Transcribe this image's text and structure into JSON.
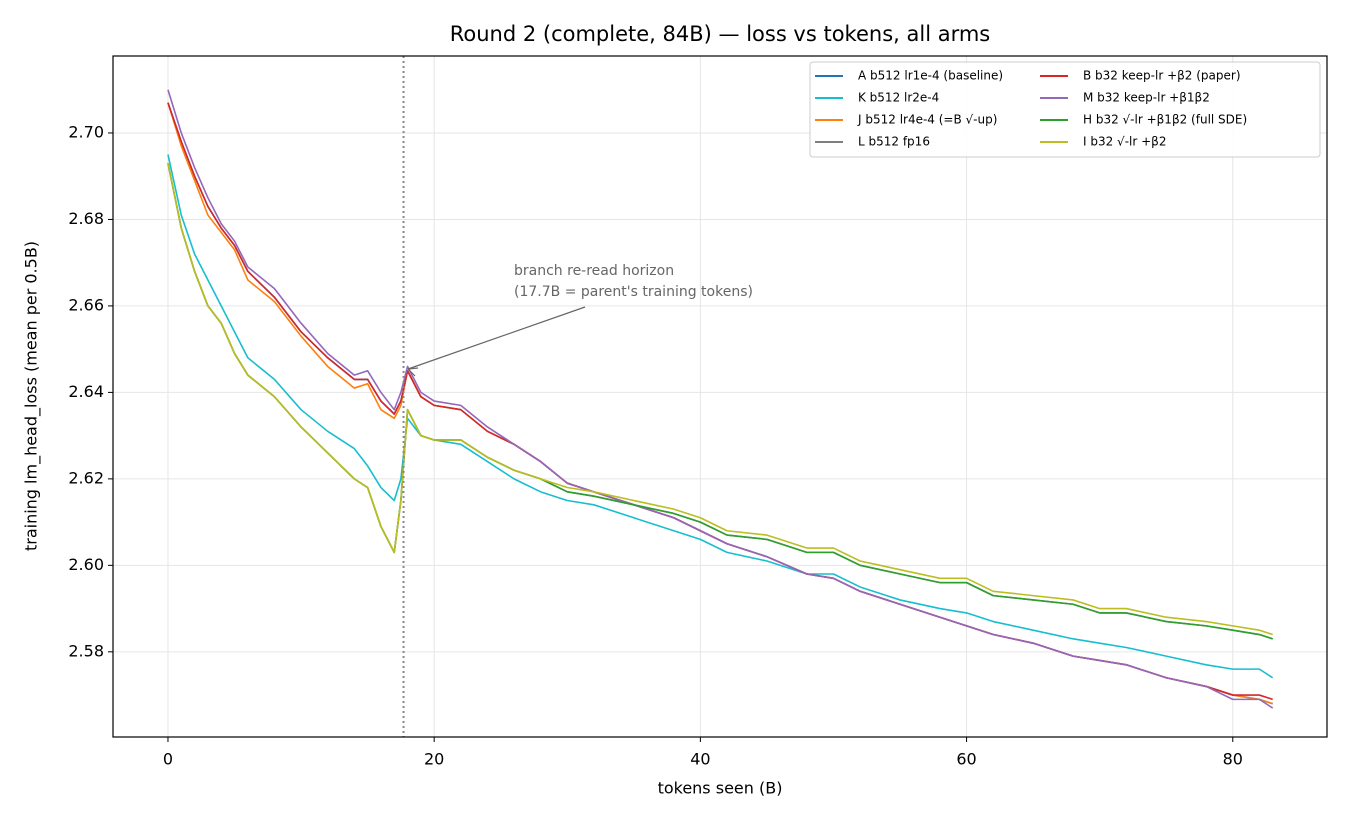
{
  "chart_data": {
    "type": "line",
    "title": "Round 2 (complete, 84B) — loss vs tokens, all arms",
    "x_label": "tokens seen (B)",
    "y_label": "training lm_head_loss (mean per 0.5B)",
    "annotation": [
      "branch re-read horizon",
      "(17.7B = parent's training tokens)"
    ],
    "vline": 17.7,
    "x": [
      0,
      1,
      2,
      3,
      4,
      5,
      6,
      8,
      10,
      12,
      14,
      15,
      16,
      17,
      17.5,
      18,
      19,
      20,
      22,
      24,
      26,
      28,
      30,
      32,
      35,
      38,
      40,
      42,
      45,
      48,
      50,
      52,
      55,
      58,
      60,
      62,
      65,
      68,
      70,
      72,
      75,
      78,
      80,
      82,
      83
    ],
    "xlim": [
      -4.13,
      87.08
    ],
    "xticks": [
      0,
      20,
      40,
      60,
      80
    ],
    "ylim": [
      2.5603,
      2.7178
    ],
    "yticks": [
      2.58,
      {
        "value": 2.6,
        "label": "2.60"
      },
      2.62,
      2.64,
      2.66,
      2.68,
      {
        "value": 2.7,
        "label": "2.70"
      }
    ],
    "grid": true,
    "legend": "upper right",
    "series": [
      {
        "name": "A  b512 lr1e-4 (baseline)",
        "color": "#1f77b4",
        "values": [
          2.707,
          2.698,
          2.69,
          2.683,
          2.678,
          2.674,
          2.668,
          2.662,
          2.654,
          2.648,
          2.643,
          2.643,
          2.638,
          2.635,
          2.638,
          2.645,
          2.639,
          2.637,
          2.636,
          2.631,
          2.628,
          2.624,
          2.619,
          2.617,
          2.614,
          2.611,
          2.608,
          2.605,
          2.602,
          2.598,
          2.597,
          2.594,
          2.591,
          2.588,
          2.586,
          2.584,
          2.582,
          2.579,
          2.578,
          2.577,
          2.574,
          2.572,
          2.57,
          2.569,
          2.568
        ]
      },
      {
        "name": "K  b512 lr2e-4",
        "color": "#17becf",
        "values": [
          2.695,
          2.681,
          2.672,
          2.666,
          2.66,
          2.654,
          2.648,
          2.643,
          2.636,
          2.631,
          2.627,
          2.623,
          2.618,
          2.615,
          2.62,
          2.634,
          2.63,
          2.629,
          2.628,
          2.624,
          2.62,
          2.617,
          2.615,
          2.614,
          2.611,
          2.608,
          2.606,
          2.603,
          2.601,
          2.598,
          2.598,
          2.595,
          2.592,
          2.59,
          2.589,
          2.587,
          2.585,
          2.583,
          2.582,
          2.581,
          2.579,
          2.577,
          2.576,
          2.576,
          2.574
        ]
      },
      {
        "name": "J  b512 lr4e-4 (=B √-up)",
        "color": "#ff7f0e",
        "values": [
          2.707,
          2.697,
          2.689,
          2.681,
          2.677,
          2.673,
          2.666,
          2.661,
          2.653,
          2.646,
          2.641,
          2.642,
          2.636,
          2.634,
          2.637,
          2.645,
          2.639,
          2.637,
          2.636,
          2.631,
          2.628,
          2.624,
          2.619,
          2.617,
          2.614,
          2.611,
          2.608,
          2.605,
          2.602,
          2.598,
          2.597,
          2.594,
          2.591,
          2.588,
          2.586,
          2.584,
          2.582,
          2.579,
          2.578,
          2.577,
          2.574,
          2.572,
          2.57,
          2.569,
          2.568
        ]
      },
      {
        "name": "L  b512 fp16",
        "color": "#7f7f7f",
        "values": [
          2.693,
          2.678,
          2.668,
          2.66,
          2.656,
          2.649,
          2.644,
          2.639,
          2.632,
          2.626,
          2.62,
          2.618,
          2.609,
          2.603,
          2.615,
          2.636,
          2.63,
          2.629,
          2.629,
          2.625,
          2.622,
          2.62,
          2.617,
          2.616,
          2.614,
          2.612,
          2.61,
          2.607,
          2.606,
          2.603,
          2.603,
          2.6,
          2.598,
          2.596,
          2.596,
          2.593,
          2.592,
          2.591,
          2.589,
          2.589,
          2.587,
          2.586,
          2.585,
          2.584,
          2.583
        ]
      },
      {
        "name": "B  b32 keep-lr +β2 (paper)",
        "color": "#d62728",
        "values": [
          2.707,
          2.698,
          2.69,
          2.683,
          2.678,
          2.674,
          2.668,
          2.662,
          2.654,
          2.648,
          2.643,
          2.643,
          2.638,
          2.635,
          2.638,
          2.645,
          2.639,
          2.637,
          2.636,
          2.631,
          2.628,
          2.624,
          2.619,
          2.617,
          2.614,
          2.611,
          2.608,
          2.605,
          2.602,
          2.598,
          2.597,
          2.594,
          2.591,
          2.588,
          2.586,
          2.584,
          2.582,
          2.579,
          2.578,
          2.577,
          2.574,
          2.572,
          2.57,
          2.57,
          2.569
        ]
      },
      {
        "name": "M  b32 keep-lr +β1β2",
        "color": "#9467bd",
        "values": [
          2.71,
          2.7,
          2.692,
          2.685,
          2.679,
          2.675,
          2.669,
          2.664,
          2.656,
          2.649,
          2.644,
          2.645,
          2.64,
          2.636,
          2.64,
          2.646,
          2.64,
          2.638,
          2.637,
          2.632,
          2.628,
          2.624,
          2.619,
          2.617,
          2.614,
          2.611,
          2.608,
          2.605,
          2.602,
          2.598,
          2.597,
          2.594,
          2.591,
          2.588,
          2.586,
          2.584,
          2.582,
          2.579,
          2.578,
          2.577,
          2.574,
          2.572,
          2.569,
          2.569,
          2.567
        ]
      },
      {
        "name": "H  b32 √-lr +β1β2 (full SDE)",
        "color": "#2ca02c",
        "values": [
          2.693,
          2.678,
          2.668,
          2.66,
          2.656,
          2.649,
          2.644,
          2.639,
          2.632,
          2.626,
          2.62,
          2.618,
          2.609,
          2.603,
          2.615,
          2.636,
          2.63,
          2.629,
          2.629,
          2.625,
          2.622,
          2.62,
          2.617,
          2.616,
          2.614,
          2.612,
          2.61,
          2.607,
          2.606,
          2.603,
          2.603,
          2.6,
          2.598,
          2.596,
          2.596,
          2.593,
          2.592,
          2.591,
          2.589,
          2.589,
          2.587,
          2.586,
          2.585,
          2.584,
          2.583
        ]
      },
      {
        "name": "I  b32 √-lr +β2",
        "color": "#bcbd22",
        "values": [
          2.693,
          2.678,
          2.668,
          2.66,
          2.656,
          2.649,
          2.644,
          2.639,
          2.632,
          2.626,
          2.62,
          2.618,
          2.609,
          2.603,
          2.615,
          2.636,
          2.63,
          2.629,
          2.629,
          2.625,
          2.622,
          2.62,
          2.618,
          2.617,
          2.615,
          2.613,
          2.611,
          2.608,
          2.607,
          2.604,
          2.604,
          2.601,
          2.599,
          2.597,
          2.597,
          2.594,
          2.593,
          2.592,
          2.59,
          2.59,
          2.588,
          2.587,
          2.586,
          2.585,
          2.584
        ]
      }
    ]
  }
}
